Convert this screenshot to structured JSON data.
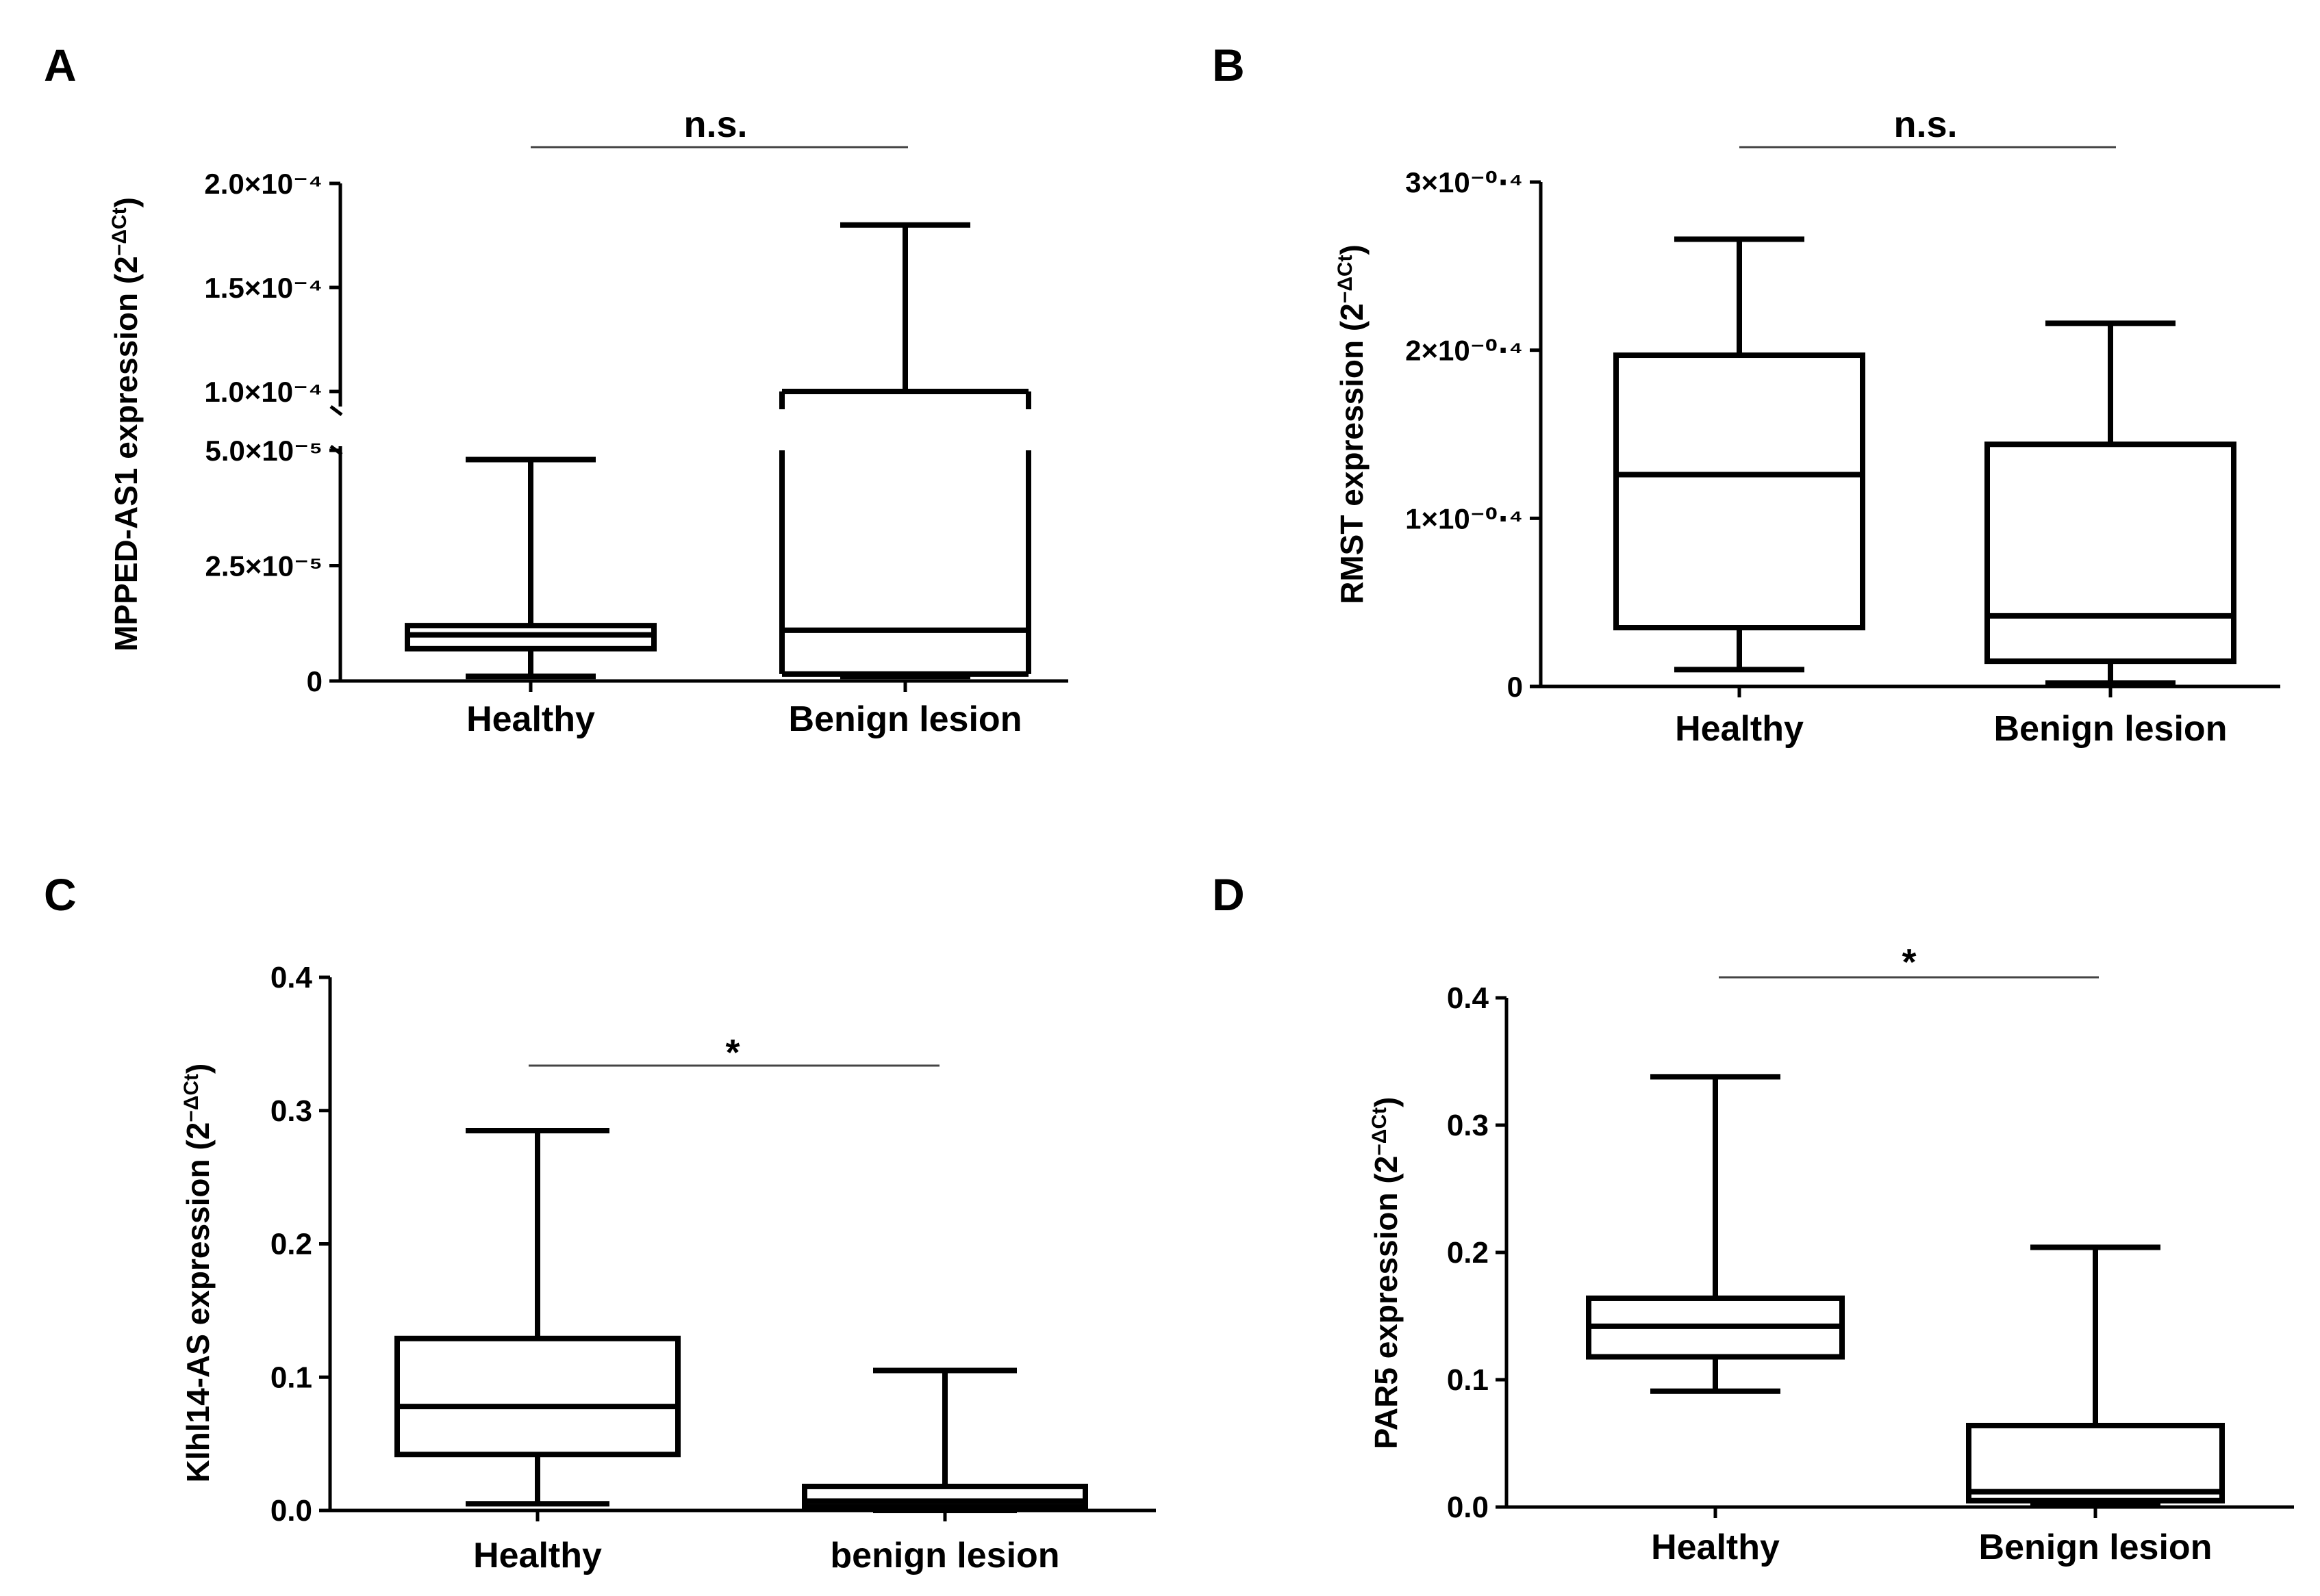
{
  "figure": {
    "panels": [
      {
        "id": "A",
        "label": "A"
      },
      {
        "id": "B",
        "label": "B"
      },
      {
        "id": "C",
        "label": "C"
      },
      {
        "id": "D",
        "label": "D"
      }
    ]
  },
  "chart_data": [
    {
      "panel": "A",
      "type": "box",
      "ylabel": "MPPED-AS1 expression (2−ΔCt)",
      "ylabel_main": "MPPED-AS1 expression (2",
      "ylabel_sup": "−ΔCt",
      "ylabel_close": ")",
      "axis_break": true,
      "y_segments": [
        {
          "range": [
            0,
            5e-05
          ],
          "ticks": [
            {
              "value": 0,
              "label": "0"
            },
            {
              "value": 2.5e-05,
              "label": "2.5×10⁻⁵"
            },
            {
              "value": 5e-05,
              "label": "5.0×10⁻⁵"
            }
          ]
        },
        {
          "range": [
            0.0001,
            0.0002
          ],
          "ticks": [
            {
              "value": 0.0001,
              "label": "1.0×10⁻⁴"
            },
            {
              "value": 0.00015,
              "label": "1.5×10⁻⁴"
            },
            {
              "value": 0.0002,
              "label": "2.0×10⁻⁴"
            }
          ]
        }
      ],
      "categories": [
        "Healthy",
        "Benign lesion"
      ],
      "boxes": [
        {
          "min": 1e-06,
          "q1": 7e-06,
          "median": 1e-05,
          "q3": 1.2e-05,
          "max": 4.8e-05
        },
        {
          "min": 1e-06,
          "q1": 1.5e-06,
          "median": 1.1e-05,
          "q3": 0.0001,
          "max": 0.00018
        }
      ],
      "significance": "n.s."
    },
    {
      "panel": "B",
      "type": "box",
      "ylabel": "RMST expression (2−ΔCt)",
      "ylabel_main": "RMST expression (2",
      "ylabel_sup": "−ΔCt",
      "ylabel_close": ")",
      "ylim": [
        0,
        3
      ],
      "ticks": [
        {
          "value": 0,
          "label": "0"
        },
        {
          "value": 1,
          "label": "1×10⁻⁰⋅⁴"
        },
        {
          "value": 2,
          "label": "2×10⁻⁰⋅⁴"
        },
        {
          "value": 3,
          "label": "3×10⁻⁰⋅⁴"
        }
      ],
      "categories": [
        "Healthy",
        "Benign lesion"
      ],
      "boxes": [
        {
          "min": 0.1,
          "q1": 0.35,
          "median": 1.26,
          "q3": 1.97,
          "max": 2.66
        },
        {
          "min": 0.02,
          "q1": 0.15,
          "median": 0.42,
          "q3": 1.44,
          "max": 2.16
        }
      ],
      "significance": "n.s."
    },
    {
      "panel": "C",
      "type": "box",
      "ylabel": "Klhl14-AS expression (2−ΔCt)",
      "ylabel_main": "Klhl14-AS expression (2",
      "ylabel_sup": "−ΔCt",
      "ylabel_close": ")",
      "ylim": [
        0,
        0.4
      ],
      "ticks": [
        {
          "value": 0,
          "label": "0.0"
        },
        {
          "value": 0.1,
          "label": "0.1"
        },
        {
          "value": 0.2,
          "label": "0.2"
        },
        {
          "value": 0.3,
          "label": "0.3"
        },
        {
          "value": 0.4,
          "label": "0.4"
        }
      ],
      "categories": [
        "Healthy",
        "benign lesion"
      ],
      "boxes": [
        {
          "min": 0.005,
          "q1": 0.042,
          "median": 0.078,
          "q3": 0.129,
          "max": 0.285
        },
        {
          "min": 0.0,
          "q1": 0.003,
          "median": 0.007,
          "q3": 0.018,
          "max": 0.105
        }
      ],
      "significance": "*"
    },
    {
      "panel": "D",
      "type": "box",
      "ylabel": "PAR5 expression (2−ΔCt)",
      "ylabel_main": "PAR5 expression (2",
      "ylabel_sup": "−ΔCt",
      "ylabel_close": ")",
      "ylim": [
        0,
        0.4
      ],
      "ticks": [
        {
          "value": 0,
          "label": "0.0"
        },
        {
          "value": 0.1,
          "label": "0.1"
        },
        {
          "value": 0.2,
          "label": "0.2"
        },
        {
          "value": 0.3,
          "label": "0.3"
        },
        {
          "value": 0.4,
          "label": "0.4"
        }
      ],
      "categories": [
        "Healthy",
        "Benign lesion"
      ],
      "boxes": [
        {
          "min": 0.091,
          "q1": 0.118,
          "median": 0.142,
          "q3": 0.164,
          "max": 0.338
        },
        {
          "min": 0.003,
          "q1": 0.005,
          "median": 0.012,
          "q3": 0.064,
          "max": 0.204
        }
      ],
      "significance": "*"
    }
  ]
}
